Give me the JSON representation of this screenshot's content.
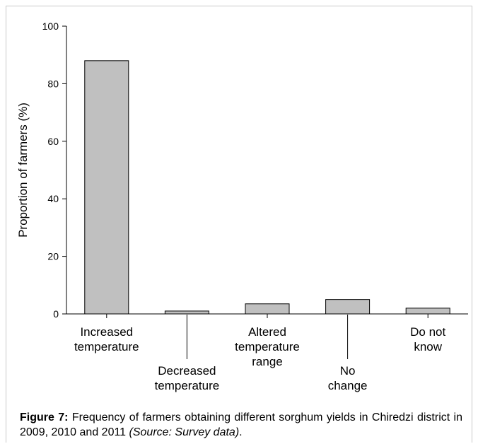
{
  "chart_data": {
    "type": "bar",
    "categories": [
      [
        "Increased",
        "temperature"
      ],
      [
        "Decreased",
        "temperature"
      ],
      [
        "Altered",
        "temperature",
        "range"
      ],
      [
        "No",
        "change"
      ],
      [
        "Do not",
        "know"
      ]
    ],
    "values": [
      88,
      1,
      3.5,
      5,
      2
    ],
    "ylabel": "Proportion of farmers (%)",
    "xlabel": "",
    "ylim": [
      0,
      100
    ],
    "yticks": [
      0,
      20,
      40,
      60,
      80,
      100
    ],
    "grid": false,
    "bar_color": "#c0c0c0",
    "bar_edge_color": "#000000"
  },
  "caption": {
    "label": "Figure 7:",
    "text": " Frequency of farmers obtaining different sorghum yields in Chiredzi district in 2009, 2010 and 2011 ",
    "source": "(Source: Survey data)",
    "end": "."
  }
}
